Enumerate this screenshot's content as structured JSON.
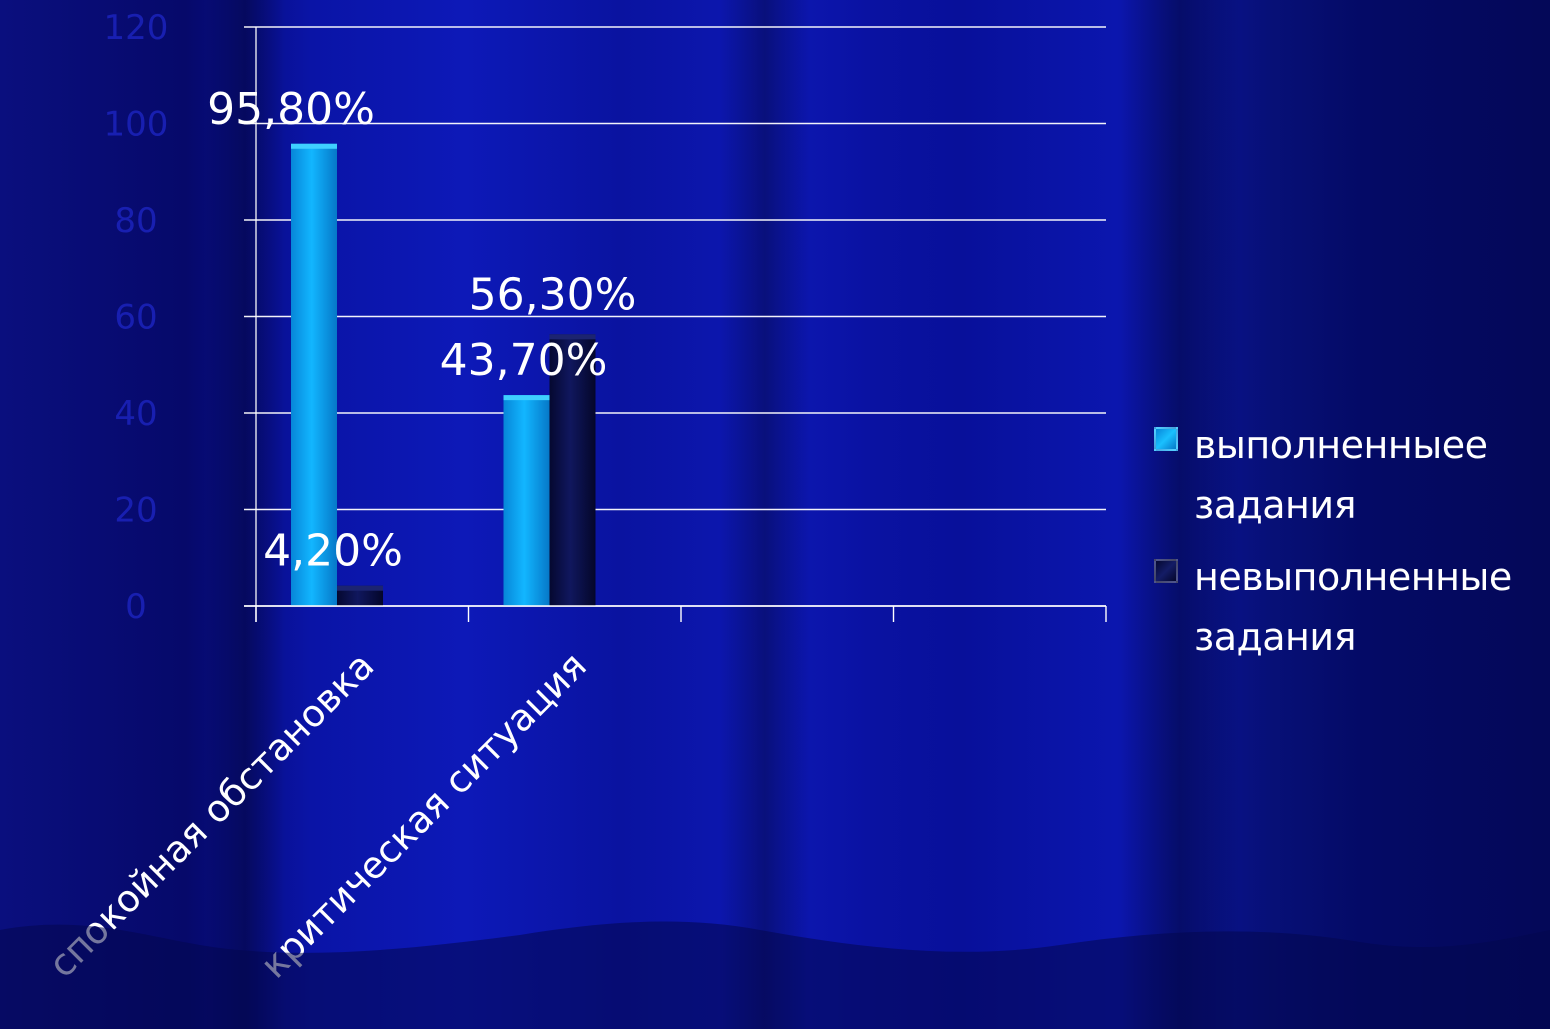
{
  "chart_data": {
    "type": "bar",
    "categories": [
      "спокойная обстановка",
      "критическая ситуация"
    ],
    "series": [
      {
        "name": "выполненныее задания",
        "values": [
          95.8,
          43.7
        ],
        "labels": [
          "95,80%",
          "43,70%"
        ],
        "color": "#0aa8f5"
      },
      {
        "name": "невыполненные задания",
        "values": [
          4.2,
          56.3
        ],
        "labels": [
          "4,20%",
          "56,30%"
        ],
        "color": "#080c45"
      }
    ],
    "ylim": [
      0,
      120
    ],
    "grid": true,
    "legend_position": "right",
    "ytick_labels": [
      "0",
      "20",
      "40",
      "60",
      "80",
      "100",
      "120"
    ]
  },
  "legend": {
    "items": [
      {
        "line1": "выполненныее",
        "line2": "задания",
        "color": "#0aa8f5"
      },
      {
        "line1": "невыполненные",
        "line2": "задания",
        "color": "#0a0d4a"
      }
    ]
  }
}
